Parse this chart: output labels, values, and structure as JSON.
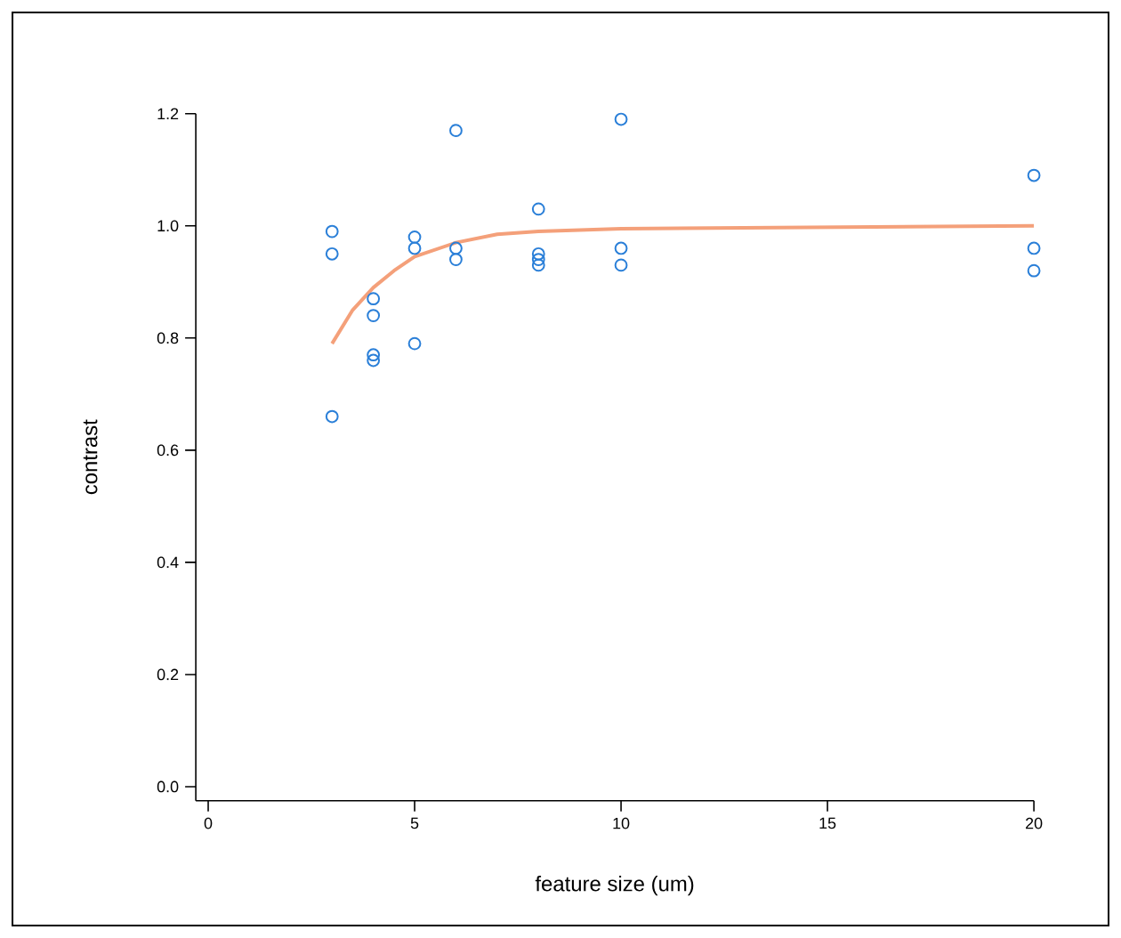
{
  "chart_data": {
    "type": "scatter",
    "xlabel": "feature size (um)",
    "ylabel": "contrast",
    "xlim": [
      -0.3,
      20
    ],
    "ylim": [
      -0.025,
      1.2
    ],
    "xticks": [
      0,
      5,
      10,
      15,
      20
    ],
    "yticks": [
      {
        "value": 0,
        "label": "0.0"
      },
      0.2,
      0.4,
      0.6,
      0.8,
      {
        "value": 1,
        "label": "1.0"
      },
      1.2
    ],
    "grid": false,
    "series": [
      {
        "marker": "circle",
        "color": "#2a7fd8",
        "x": [
          3,
          3,
          3,
          4,
          4,
          4,
          4,
          5,
          5,
          5,
          6,
          6,
          6,
          8,
          8,
          8,
          8,
          10,
          10,
          10,
          20,
          20,
          20
        ],
        "values": [
          0.99,
          0.95,
          0.66,
          0.87,
          0.84,
          0.77,
          0.76,
          0.98,
          0.96,
          0.79,
          1.17,
          0.96,
          0.94,
          1.03,
          0.95,
          0.94,
          0.93,
          1.19,
          0.96,
          0.93,
          1.09,
          0.96,
          0.92
        ]
      },
      {
        "type": "line",
        "marker": "none",
        "line_style": "solid",
        "color": "#f4a07a",
        "x": [
          3,
          3.5,
          4,
          4.5,
          5,
          6,
          7,
          8,
          10,
          20
        ],
        "values": [
          0.79,
          0.85,
          0.89,
          0.92,
          0.945,
          0.97,
          0.985,
          0.99,
          0.995,
          1.0
        ]
      }
    ]
  }
}
